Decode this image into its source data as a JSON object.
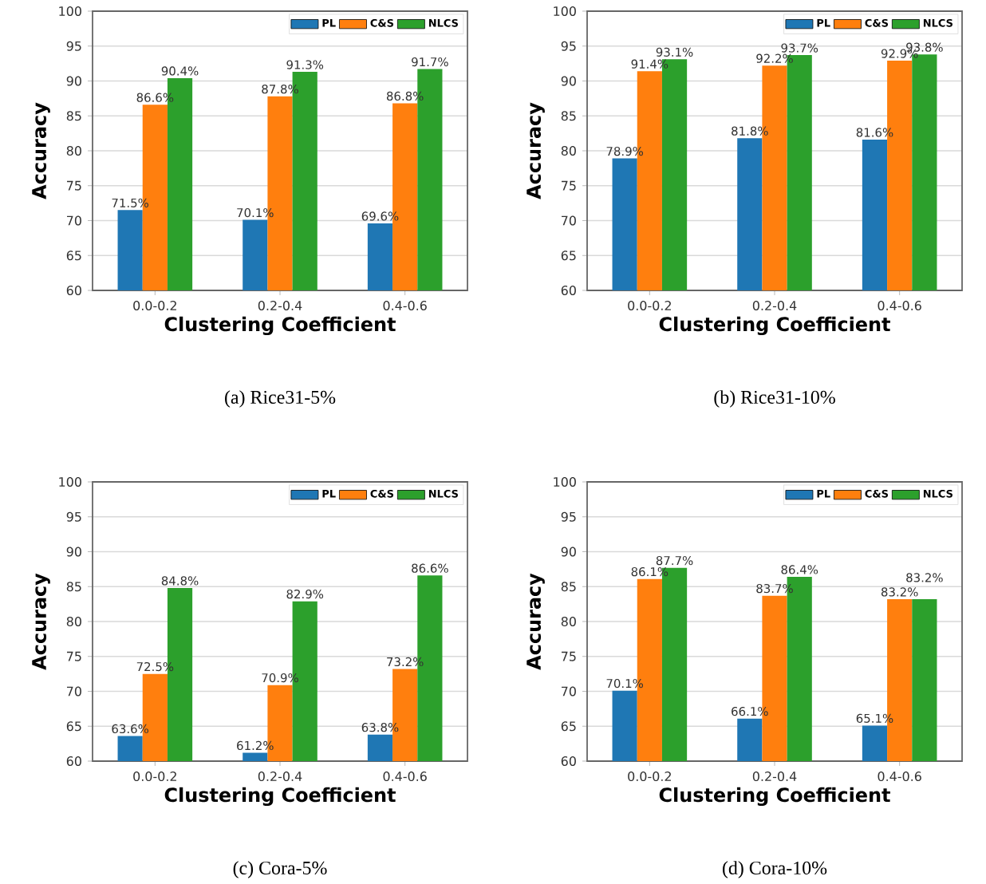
{
  "chart_data": [
    {
      "type": "bar",
      "title": "(a) Rice31-5%",
      "xlabel": "Clustering Coefficient",
      "ylabel": "Accuracy",
      "categories": [
        "0.0-0.2",
        "0.2-0.4",
        "0.4-0.6"
      ],
      "ylim": [
        60,
        100
      ],
      "yticks": [
        60,
        65,
        70,
        75,
        80,
        85,
        90,
        95,
        100
      ],
      "grid": "y",
      "legend": "top right",
      "series": [
        {
          "name": "PL",
          "color": "#1f77b4",
          "values": [
            71.5,
            70.1,
            69.6
          ],
          "value_labels": [
            "71.5%",
            "70.1%",
            "69.6%"
          ]
        },
        {
          "name": "C&S",
          "color": "#ff7f0e",
          "values": [
            86.6,
            87.8,
            86.8
          ],
          "value_labels": [
            "86.6%",
            "87.8%",
            "86.8%"
          ]
        },
        {
          "name": "NLCS",
          "color": "#2ca02c",
          "values": [
            90.4,
            91.3,
            91.7
          ],
          "value_labels": [
            "90.4%",
            "91.3%",
            "91.7%"
          ]
        }
      ]
    },
    {
      "type": "bar",
      "title": "(b) Rice31-10%",
      "xlabel": "Clustering Coefficient",
      "ylabel": "Accuracy",
      "categories": [
        "0.0-0.2",
        "0.2-0.4",
        "0.4-0.6"
      ],
      "ylim": [
        60,
        100
      ],
      "yticks": [
        60,
        65,
        70,
        75,
        80,
        85,
        90,
        95,
        100
      ],
      "grid": "y",
      "legend": "top right",
      "series": [
        {
          "name": "PL",
          "color": "#1f77b4",
          "values": [
            78.9,
            81.8,
            81.6
          ],
          "value_labels": [
            "78.9%",
            "81.8%",
            "81.6%"
          ]
        },
        {
          "name": "C&S",
          "color": "#ff7f0e",
          "values": [
            91.4,
            92.2,
            92.9
          ],
          "value_labels": [
            "91.4%",
            "92.2%",
            "92.9%"
          ]
        },
        {
          "name": "NLCS",
          "color": "#2ca02c",
          "values": [
            93.1,
            93.7,
            93.8
          ],
          "value_labels": [
            "93.1%",
            "93.7%",
            "93.8%"
          ]
        }
      ]
    },
    {
      "type": "bar",
      "title": "(c) Cora-5%",
      "xlabel": "Clustering Coefficient",
      "ylabel": "Accuracy",
      "categories": [
        "0.0-0.2",
        "0.2-0.4",
        "0.4-0.6"
      ],
      "ylim": [
        60,
        100
      ],
      "yticks": [
        60,
        65,
        70,
        75,
        80,
        85,
        90,
        95,
        100
      ],
      "grid": "y",
      "legend": "top right",
      "series": [
        {
          "name": "PL",
          "color": "#1f77b4",
          "values": [
            63.6,
            61.2,
            63.8
          ],
          "value_labels": [
            "63.6%",
            "61.2%",
            "63.8%"
          ]
        },
        {
          "name": "C&S",
          "color": "#ff7f0e",
          "values": [
            72.5,
            70.9,
            73.2
          ],
          "value_labels": [
            "72.5%",
            "70.9%",
            "73.2%"
          ]
        },
        {
          "name": "NLCS",
          "color": "#2ca02c",
          "values": [
            84.8,
            82.9,
            86.6
          ],
          "value_labels": [
            "84.8%",
            "82.9%",
            "86.6%"
          ]
        }
      ]
    },
    {
      "type": "bar",
      "title": "(d) Cora-10%",
      "xlabel": "Clustering Coefficient",
      "ylabel": "Accuracy",
      "categories": [
        "0.0-0.2",
        "0.2-0.4",
        "0.4-0.6"
      ],
      "ylim": [
        60,
        100
      ],
      "yticks": [
        60,
        65,
        70,
        75,
        80,
        85,
        90,
        95,
        100
      ],
      "grid": "y",
      "legend": "top right",
      "series": [
        {
          "name": "PL",
          "color": "#1f77b4",
          "values": [
            70.1,
            66.1,
            65.1
          ],
          "value_labels": [
            "70.1%",
            "66.1%",
            "65.1%"
          ]
        },
        {
          "name": "C&S",
          "color": "#ff7f0e",
          "values": [
            86.1,
            83.7,
            83.2
          ],
          "value_labels": [
            "86.1%",
            "83.7%",
            "83.2%"
          ]
        },
        {
          "name": "NLCS",
          "color": "#2ca02c",
          "values": [
            87.7,
            86.4,
            83.2
          ],
          "value_labels": [
            "87.7%",
            "86.4%",
            "83.2%"
          ]
        }
      ]
    }
  ]
}
